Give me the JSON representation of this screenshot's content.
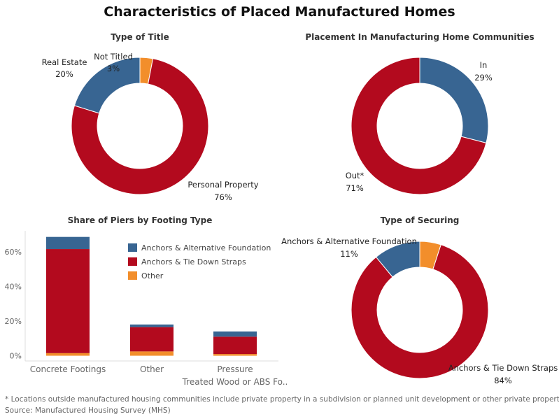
{
  "title": "Characteristics of Placed Manufactured Homes",
  "colors": {
    "blue": "#386592",
    "red": "#B30A1E",
    "orange": "#F28E2B"
  },
  "chart_data": [
    {
      "type": "pie",
      "title": "Type of Title",
      "donut": true,
      "slices": [
        {
          "label": "Not Titled",
          "value": 3,
          "value_label": "3%",
          "color": "#F28E2B"
        },
        {
          "label": "Personal Property",
          "value": 76,
          "value_label": "76%",
          "color": "#B30A1E"
        },
        {
          "label": "Real Estate",
          "value": 20,
          "value_label": "20%",
          "color": "#386592"
        }
      ]
    },
    {
      "type": "pie",
      "title": "Placement In Manufacturing Home Communities",
      "donut": true,
      "slices": [
        {
          "label": "In",
          "value": 29,
          "value_label": "29%",
          "color": "#386592"
        },
        {
          "label": "Out*",
          "value": 71,
          "value_label": "71%",
          "color": "#B30A1E"
        }
      ]
    },
    {
      "type": "bar",
      "stacked": true,
      "title": "Share of Piers by Footing Type",
      "categories": [
        "Concrete Footings",
        "Other",
        "Pressure Treated Wood or ABS Fo.."
      ],
      "series": [
        {
          "name": "Other",
          "color": "#F28E2B",
          "values": [
            1.5,
            2.5,
            1.0
          ]
        },
        {
          "name": "Anchors & Tie Down Straps",
          "color": "#B30A1E",
          "values": [
            60,
            14,
            10
          ]
        },
        {
          "name": "Anchors & Alternative Foundation",
          "color": "#386592",
          "values": [
            7,
            1.5,
            3
          ]
        }
      ],
      "legend": {
        "position": "top-right",
        "order": [
          "Anchors & Alternative Foundation",
          "Anchors & Tie Down Straps",
          "Other"
        ]
      },
      "y_ticks": [
        0,
        20,
        40,
        60
      ],
      "y_tick_labels": [
        "0%",
        "20%",
        "40%",
        "60%"
      ],
      "ylim": [
        -3,
        72
      ]
    },
    {
      "type": "pie",
      "title": "Type of Securing",
      "donut": true,
      "slices": [
        {
          "label": "",
          "value": 5,
          "value_label": "",
          "color": "#F28E2B"
        },
        {
          "label": "Anchors & Tie Down Straps",
          "value": 84,
          "value_label": "84%",
          "color": "#B30A1E"
        },
        {
          "label": "Anchors & Alternative Foundation",
          "value": 11,
          "value_label": "11%",
          "color": "#386592"
        }
      ]
    }
  ],
  "footnote": "* Locations outside manufactured housing communities include private property in a subdivision or planned unit development or other private property.",
  "source": "Source: Manufactured Housing Survey  (MHS)"
}
